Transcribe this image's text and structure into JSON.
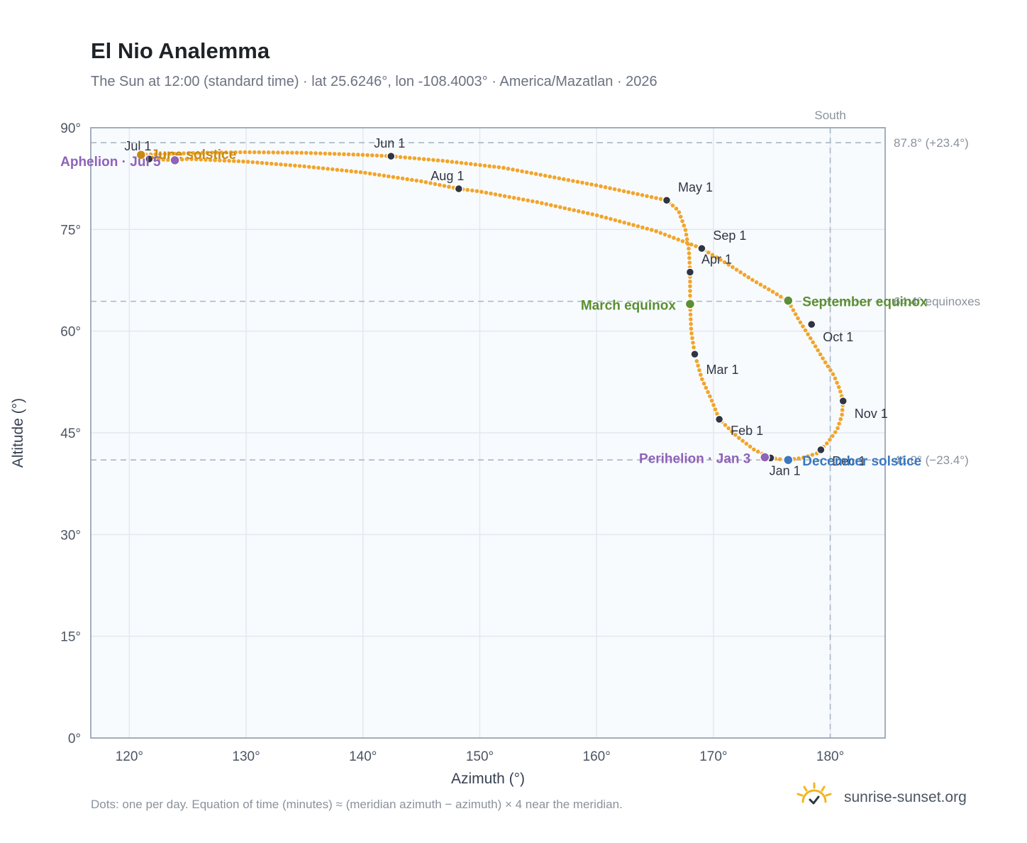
{
  "title": "El Nio Analemma",
  "subtitle": "The Sun at 12:00 (standard time) · lat 25.6246°, lon -108.4003° · America/Mazatlan · 2026",
  "footnote": "Dots: one per day. Equation of time (minutes) ≈ (meridian azimuth − azimuth) × 4 near the meridian.",
  "brand": {
    "name": "sunrise-sunset.org",
    "icon": "sun-check-icon"
  },
  "colors": {
    "curve": "#f2a52a",
    "month_dot": "#2f3542",
    "solstice_june": "#c98a10",
    "equinox": "#5b8f32",
    "december_solstice": "#3a78c0",
    "apsis": "#8e63b8",
    "reference_line": "#aab7c4",
    "grid": "#e3e8ee",
    "plot_bg": "#f8fbfe",
    "frame": "#9aa6b4"
  },
  "chart_data": {
    "type": "scatter",
    "title": "El Nio Analemma",
    "xlabel": "Azimuth (°)",
    "ylabel": "Altitude (°)",
    "xlim": [
      116.7,
      184.7
    ],
    "ylim": [
      0,
      90
    ],
    "x_ticks": [
      120,
      130,
      140,
      150,
      160,
      170,
      180
    ],
    "x_tick_labels": [
      "120°",
      "130°",
      "140°",
      "150°",
      "160°",
      "170°",
      "180°"
    ],
    "y_ticks": [
      0,
      15,
      30,
      45,
      60,
      75,
      90
    ],
    "y_tick_labels": [
      "0°",
      "15°",
      "30°",
      "45°",
      "60°",
      "75°",
      "90°"
    ],
    "grid": true,
    "series": [
      {
        "points": [
          [
            174.9,
            41.3
          ],
          [
            176.2,
            41.0
          ],
          [
            177.6,
            41.3
          ],
          [
            178.9,
            42.0
          ],
          [
            179.8,
            43.6
          ],
          [
            180.6,
            45.5
          ],
          [
            181.0,
            47.6
          ],
          [
            181.1,
            49.7
          ],
          [
            180.8,
            51.5
          ],
          [
            180.3,
            53.5
          ],
          [
            179.5,
            55.6
          ],
          [
            178.4,
            58.7
          ],
          [
            177.4,
            61.4
          ],
          [
            176.4,
            64.4
          ],
          [
            175.0,
            65.9
          ],
          [
            173.3,
            67.6
          ],
          [
            171.5,
            69.6
          ],
          [
            169.0,
            72.2
          ],
          [
            165.0,
            74.8
          ],
          [
            160.0,
            77.1
          ],
          [
            155.0,
            79.0
          ],
          [
            150.0,
            80.6
          ],
          [
            148.2,
            81.0
          ],
          [
            145.0,
            82.1
          ],
          [
            140.0,
            83.4
          ],
          [
            135.0,
            84.3
          ],
          [
            130.0,
            85.0
          ],
          [
            125.0,
            85.4
          ],
          [
            123.9,
            85.2
          ],
          [
            121.7,
            85.4
          ],
          [
            121.0,
            86.0
          ],
          [
            122.5,
            86.1
          ],
          [
            126.0,
            86.3
          ],
          [
            130.0,
            86.4
          ],
          [
            135.0,
            86.3
          ],
          [
            140.0,
            86.0
          ],
          [
            142.4,
            85.8
          ],
          [
            147.0,
            85.1
          ],
          [
            152.0,
            84.1
          ],
          [
            156.0,
            82.8
          ],
          [
            160.0,
            81.5
          ],
          [
            163.0,
            80.4
          ],
          [
            166.0,
            79.3
          ],
          [
            167.0,
            77.8
          ],
          [
            167.6,
            75.0
          ],
          [
            167.9,
            72.0
          ],
          [
            168.0,
            68.7
          ],
          [
            168.0,
            64.0
          ],
          [
            168.1,
            60.0
          ],
          [
            168.4,
            56.6
          ],
          [
            169.0,
            53.0
          ],
          [
            169.8,
            50.0
          ],
          [
            170.5,
            47.0
          ],
          [
            172.0,
            44.5
          ],
          [
            173.5,
            42.5
          ],
          [
            174.9,
            41.3
          ]
        ]
      }
    ],
    "markers": [
      {
        "label": "Jan 1",
        "x": 174.9,
        "y": 41.3
      },
      {
        "label": "Feb 1",
        "x": 170.5,
        "y": 47.0
      },
      {
        "label": "Mar 1",
        "x": 168.4,
        "y": 56.6
      },
      {
        "label": "Apr 1",
        "x": 168.0,
        "y": 68.7
      },
      {
        "label": "May 1",
        "x": 166.0,
        "y": 79.3
      },
      {
        "label": "Jun 1",
        "x": 142.4,
        "y": 85.8
      },
      {
        "label": "Jul 1",
        "x": 121.7,
        "y": 85.4
      },
      {
        "label": "Aug 1",
        "x": 148.2,
        "y": 81.0
      },
      {
        "label": "Sep 1",
        "x": 169.0,
        "y": 72.2
      },
      {
        "label": "Oct 1",
        "x": 178.4,
        "y": 61.0
      },
      {
        "label": "Nov 1",
        "x": 181.1,
        "y": 49.7
      },
      {
        "label": "Dec 1",
        "x": 179.2,
        "y": 42.5
      }
    ],
    "events": [
      {
        "label": "June solstice",
        "x": 121.0,
        "y": 86.0,
        "kind": "solstice_june"
      },
      {
        "label": "March equinox",
        "x": 168.0,
        "y": 64.0,
        "kind": "equinox"
      },
      {
        "label": "September equinox",
        "x": 176.4,
        "y": 64.5,
        "kind": "equinox"
      },
      {
        "label": "December solstice",
        "x": 176.4,
        "y": 41.0,
        "kind": "december_solstice"
      },
      {
        "label": "Aphelion · Jul 5",
        "x": 123.9,
        "y": 85.2,
        "kind": "apsis"
      },
      {
        "label": "Perihelion · Jan 3",
        "x": 174.4,
        "y": 41.4,
        "kind": "apsis"
      }
    ],
    "reference_lines": [
      {
        "axis": "y",
        "value": 87.8,
        "label": "87.8° (+23.4°)"
      },
      {
        "axis": "y",
        "value": 64.4,
        "label": "64.4° equinoxes"
      },
      {
        "axis": "y",
        "value": 41.0,
        "label": "41.0° (−23.4°)"
      },
      {
        "axis": "x",
        "value": 180,
        "label": "South"
      }
    ]
  }
}
